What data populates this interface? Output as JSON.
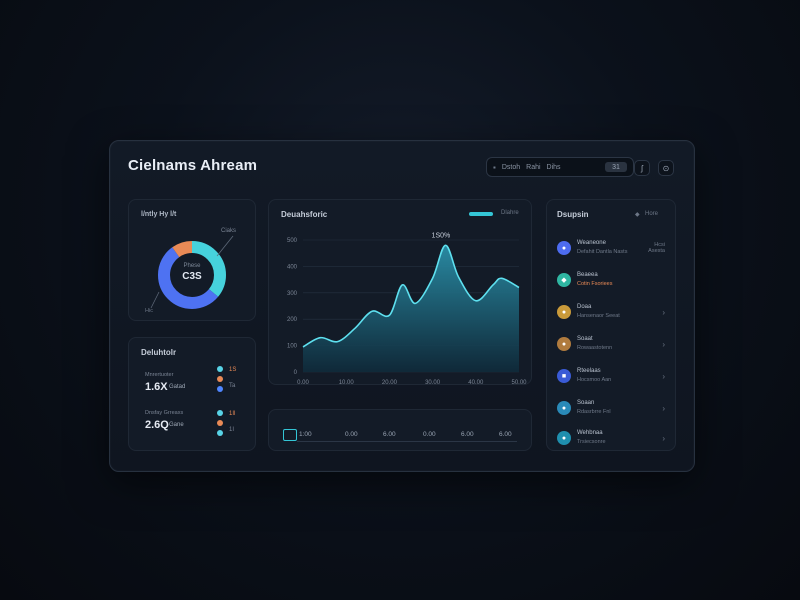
{
  "app": {
    "title": "Cielnams Ahream"
  },
  "toolbar": {
    "items": [
      "Dstoh",
      "Rahi",
      "Dihs"
    ],
    "badge": "31",
    "btn1": "ʃ",
    "btn2": "⊙"
  },
  "donut_card": {
    "title": "l/ntly Hy l/t",
    "callout": "Ciaks",
    "center_top": "Phese",
    "center_value": "C3S",
    "foot_label": "Hic"
  },
  "stats_card": {
    "title": "Deluhtolr",
    "rows": [
      {
        "label": "Mnrertuoter",
        "value": "1.6X",
        "suffix": "Gatad",
        "a": "1S",
        "b": "Ta"
      },
      {
        "label": "Dnsfay Grreaxs",
        "value": "2.6Q",
        "suffix": "Gane",
        "a": "1Il",
        "b": "1I"
      }
    ],
    "colors": {
      "cyan": "#58d3e6",
      "orange": "#e98a56",
      "blue": "#4f86ff"
    }
  },
  "chart_card": {
    "title": "Deuahsforic",
    "legend_label": "Dlahre",
    "peak_label": "1S0%",
    "accent": "#34c6d6"
  },
  "chart_data": {
    "type": "area",
    "title": "Deuahsforic",
    "x_tick_labels": [
      "0.00",
      "10.00",
      "20.00",
      "30.00",
      "40.00",
      "50.00"
    ],
    "y_tick_labels": [
      "0",
      "100",
      "200",
      "300",
      "400",
      "500"
    ],
    "ylim": [
      0,
      500
    ],
    "x": [
      0,
      4,
      8,
      12,
      16,
      20,
      23,
      26,
      30,
      33,
      36,
      40,
      44,
      46,
      50
    ],
    "values": [
      95,
      130,
      115,
      165,
      230,
      215,
      330,
      260,
      355,
      480,
      360,
      270,
      330,
      355,
      320
    ],
    "annotation": "1S0%",
    "grid": true
  },
  "bottom_bar": {
    "values": [
      "1:00",
      "0.00",
      "6.00",
      "0.00",
      "6.00",
      "6.00"
    ]
  },
  "sidebar": {
    "title": "Dsupsin",
    "header_icon": "◆",
    "header_meta": "Hore",
    "items": [
      {
        "title": "Weaneone",
        "sub": "Defahit Dantla Nasts",
        "meta": "Hcsi\nAsesta",
        "color": "#4d6cf0",
        "meta_color": "#8d97a6",
        "chevron": false
      },
      {
        "title": "Beaeea",
        "sub": "Cotin Fsoriees",
        "meta": "",
        "color": "#2fb6a2",
        "meta_color": "#e98a56",
        "chevron": false
      },
      {
        "title": "Doaa",
        "sub": "Hansenaor Seeat",
        "meta": "",
        "color": "#c99a3a",
        "meta_color": "#8d97a6",
        "chevron": true
      },
      {
        "title": "Soaat",
        "sub": "Rowaastotenn",
        "meta": "",
        "color": "#b07b3e",
        "meta_color": "#8d97a6",
        "chevron": true
      },
      {
        "title": "Rteelaas",
        "sub": "Hocsmoo Aan",
        "meta": "",
        "color": "#3a5bd6",
        "meta_color": "#8d97a6",
        "chevron": true
      },
      {
        "title": "Soaan",
        "sub": "Rdasrbrre Fnl",
        "meta": "",
        "color": "#2a8ab8",
        "meta_color": "#8d97a6",
        "chevron": true
      },
      {
        "title": "Wehbnaa",
        "sub": "Trsiecsonre",
        "meta": "",
        "color": "#1f8fae",
        "meta_color": "#8d97a6",
        "chevron": true
      }
    ]
  }
}
